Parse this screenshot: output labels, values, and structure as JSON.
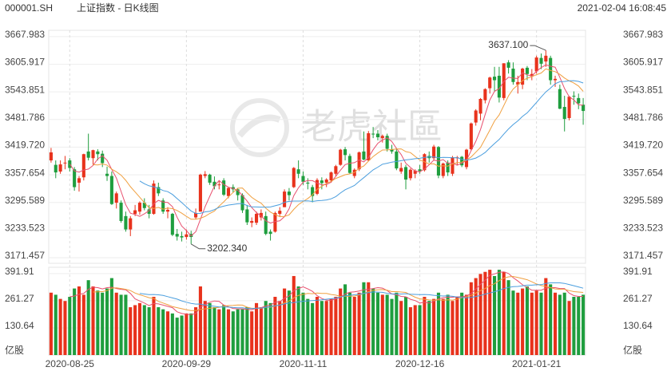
{
  "chart_data": {
    "type": "candlestick",
    "symbol": "000001.SH",
    "title": "上证指数 - 日K线图",
    "timestamp": "2021-02-04 16:08:45",
    "watermark": "老虎社區",
    "volume_unit": "亿股",
    "up_color": "#e8321c",
    "down_color": "#1f9e3e",
    "grid": true,
    "ylim": [
      3159,
      3682
    ],
    "yticks": [
      3667.983,
      3605.917,
      3543.851,
      3481.786,
      {
        "value": 3419.72,
        "label": "3419.720"
      },
      3357.654,
      3295.589,
      3233.523,
      3171.457
    ],
    "vol_ylim": [
      0,
      422
    ],
    "vol_yticks": [
      391.91,
      261.27,
      130.64
    ],
    "ma": [
      {
        "period": 5,
        "color": "#e8506e"
      },
      {
        "period": 10,
        "color": "#f0a040"
      },
      {
        "period": 20,
        "color": "#4a9ede"
      }
    ],
    "annotations": [
      {
        "value": 3637.1,
        "label": "3637.100"
      },
      {
        "value": 3202.34,
        "label": "3202.340"
      }
    ],
    "categories": [
      null,
      null,
      null,
      null,
      "2020-08-25",
      null,
      null,
      null,
      null,
      null,
      null,
      null,
      null,
      null,
      null,
      null,
      null,
      null,
      null,
      null,
      null,
      null,
      null,
      null,
      null,
      null,
      null,
      null,
      null,
      "2020-09-29",
      null,
      null,
      null,
      null,
      null,
      null,
      null,
      null,
      null,
      null,
      null,
      null,
      null,
      null,
      null,
      null,
      null,
      null,
      null,
      null,
      null,
      null,
      null,
      null,
      "2020-11-11",
      null,
      null,
      null,
      null,
      null,
      null,
      null,
      null,
      null,
      null,
      null,
      null,
      null,
      null,
      null,
      null,
      null,
      null,
      null,
      null,
      null,
      null,
      null,
      null,
      "2020-12-16",
      null,
      null,
      null,
      null,
      null,
      null,
      null,
      null,
      null,
      null,
      null,
      null,
      null,
      null,
      null,
      null,
      null,
      null,
      null,
      null,
      null,
      null,
      null,
      null,
      "2021-01-21",
      null,
      null,
      null,
      null,
      null,
      null,
      null,
      null,
      null,
      null
    ],
    "ohlc": [
      [
        3390,
        3418,
        3385,
        3408
      ],
      [
        3380,
        3390,
        3350,
        3363
      ],
      [
        3365,
        3390,
        3360,
        3381
      ],
      [
        3385,
        3400,
        3370,
        3385
      ],
      [
        3390,
        3395,
        3365,
        3373
      ],
      [
        3370,
        3375,
        3322,
        3330
      ],
      [
        3340,
        3355,
        3320,
        3350
      ],
      [
        3352,
        3405,
        3345,
        3404
      ],
      [
        3410,
        3450,
        3390,
        3396
      ],
      [
        3395,
        3414,
        3380,
        3413
      ],
      [
        3410,
        3415,
        3390,
        3404
      ],
      [
        3405,
        3412,
        3375,
        3384
      ],
      [
        3360,
        3376,
        3344,
        3355
      ],
      [
        3355,
        3365,
        3290,
        3292
      ],
      [
        3295,
        3320,
        3282,
        3316
      ],
      [
        3295,
        3300,
        3250,
        3254
      ],
      [
        3265,
        3275,
        3230,
        3235
      ],
      [
        3235,
        3265,
        3220,
        3260
      ],
      [
        3270,
        3290,
        3265,
        3278
      ],
      [
        3275,
        3298,
        3268,
        3295
      ],
      [
        3295,
        3305,
        3278,
        3283
      ],
      [
        3280,
        3290,
        3260,
        3270
      ],
      [
        3270,
        3345,
        3268,
        3338
      ],
      [
        3330,
        3340,
        3310,
        3316
      ],
      [
        3300,
        3305,
        3270,
        3275
      ],
      [
        3275,
        3285,
        3260,
        3279
      ],
      [
        3270,
        3272,
        3220,
        3223
      ],
      [
        3225,
        3236,
        3210,
        3219
      ],
      [
        3220,
        3230,
        3208,
        3217
      ],
      [
        3218,
        3235,
        3212,
        3224
      ],
      [
        3225,
        3232,
        3202.34,
        3218
      ],
      [
        3262,
        3282,
        3258,
        3272
      ],
      [
        3275,
        3360,
        3275,
        3358
      ],
      [
        3355,
        3366,
        3350,
        3359
      ],
      [
        3358,
        3360,
        3335,
        3340
      ],
      [
        3342,
        3354,
        3325,
        3332
      ],
      [
        3335,
        3345,
        3325,
        3336
      ],
      [
        3345,
        3350,
        3310,
        3313
      ],
      [
        3310,
        3330,
        3305,
        3328
      ],
      [
        3330,
        3336,
        3318,
        3325
      ],
      [
        3325,
        3328,
        3300,
        3312
      ],
      [
        3312,
        3316,
        3272,
        3278
      ],
      [
        3280,
        3290,
        3245,
        3251
      ],
      [
        3250,
        3262,
        3240,
        3254
      ],
      [
        3250,
        3275,
        3245,
        3270
      ],
      [
        3262,
        3280,
        3255,
        3272
      ],
      [
        3265,
        3275,
        3222,
        3225
      ],
      [
        3230,
        3235,
        3210,
        3225
      ],
      [
        3230,
        3275,
        3228,
        3272
      ],
      [
        3270,
        3285,
        3265,
        3277
      ],
      [
        3285,
        3325,
        3285,
        3320
      ],
      [
        3320,
        3328,
        3300,
        3312
      ],
      [
        3330,
        3375,
        3328,
        3373
      ],
      [
        3370,
        3390,
        3350,
        3360
      ],
      [
        3355,
        3365,
        3335,
        3342
      ],
      [
        3340,
        3350,
        3325,
        3338
      ],
      [
        3330,
        3335,
        3296,
        3310
      ],
      [
        3315,
        3350,
        3312,
        3346
      ],
      [
        3345,
        3352,
        3325,
        3339
      ],
      [
        3340,
        3350,
        3330,
        3347
      ],
      [
        3345,
        3365,
        3340,
        3363
      ],
      [
        3360,
        3380,
        3355,
        3377
      ],
      [
        3380,
        3416,
        3378,
        3414
      ],
      [
        3415,
        3420,
        3390,
        3402
      ],
      [
        3400,
        3405,
        3360,
        3362
      ],
      [
        3355,
        3372,
        3350,
        3369
      ],
      [
        3370,
        3410,
        3366,
        3408
      ],
      [
        3410,
        3455,
        3390,
        3392
      ],
      [
        3390,
        3456,
        3388,
        3451
      ],
      [
        3450,
        3465,
        3440,
        3449
      ],
      [
        3450,
        3458,
        3435,
        3442
      ],
      [
        3440,
        3448,
        3430,
        3445
      ],
      [
        3445,
        3450,
        3410,
        3416
      ],
      [
        3415,
        3425,
        3405,
        3410
      ],
      [
        3410,
        3418,
        3368,
        3372
      ],
      [
        3365,
        3385,
        3360,
        3373
      ],
      [
        3375,
        3380,
        3325,
        3347
      ],
      [
        3350,
        3372,
        3345,
        3369
      ],
      [
        3360,
        3370,
        3350,
        3367
      ],
      [
        3370,
        3380,
        3360,
        3366
      ],
      [
        3368,
        3406,
        3365,
        3404
      ],
      [
        3400,
        3410,
        3385,
        3395
      ],
      [
        3395,
        3425,
        3390,
        3421
      ],
      [
        3420,
        3422,
        3350,
        3356
      ],
      [
        3355,
        3385,
        3350,
        3383
      ],
      [
        3385,
        3390,
        3355,
        3363
      ],
      [
        3360,
        3400,
        3355,
        3397
      ],
      [
        3395,
        3400,
        3380,
        3397
      ],
      [
        3398,
        3400,
        3375,
        3379
      ],
      [
        3375,
        3416,
        3370,
        3414
      ],
      [
        3415,
        3475,
        3412,
        3473
      ],
      [
        3475,
        3505,
        3468,
        3502
      ],
      [
        3495,
        3530,
        3480,
        3528
      ],
      [
        3525,
        3552,
        3518,
        3550
      ],
      [
        3552,
        3578,
        3540,
        3576
      ],
      [
        3578,
        3600,
        3545,
        3570
      ],
      [
        3580,
        3600,
        3520,
        3531
      ],
      [
        3530,
        3608,
        3525,
        3608
      ],
      [
        3610,
        3615,
        3585,
        3598
      ],
      [
        3596,
        3610,
        3560,
        3566
      ],
      [
        3560,
        3580,
        3540,
        3566
      ],
      [
        3560,
        3598,
        3550,
        3596
      ],
      [
        3598,
        3602,
        3570,
        3584
      ],
      [
        3580,
        3595,
        3570,
        3584
      ],
      [
        3590,
        3625,
        3585,
        3621
      ],
      [
        3620,
        3630,
        3595,
        3607
      ],
      [
        3612,
        3637.1,
        3600,
        3625
      ],
      [
        3620,
        3625,
        3560,
        3570
      ],
      [
        3570,
        3580,
        3555,
        3573
      ],
      [
        3550,
        3560,
        3505,
        3506
      ],
      [
        3510,
        3535,
        3455,
        3483
      ],
      [
        3485,
        3535,
        3480,
        3533
      ],
      [
        3535,
        3545,
        3515,
        3534
      ],
      [
        3530,
        3540,
        3505,
        3518
      ],
      [
        3515,
        3530,
        3470,
        3501
      ]
    ],
    "volume": [
      300,
      290,
      270,
      260,
      280,
      320,
      330,
      290,
      360,
      330,
      310,
      300,
      320,
      370,
      300,
      290,
      290,
      230,
      240,
      250,
      240,
      230,
      280,
      230,
      220,
      210,
      200,
      180,
      190,
      200,
      200,
      230,
      330,
      260,
      250,
      230,
      220,
      240,
      220,
      210,
      220,
      220,
      230,
      210,
      250,
      230,
      260,
      250,
      280,
      260,
      320,
      310,
      380,
      330,
      300,
      270,
      250,
      280,
      260,
      260,
      270,
      280,
      320,
      340,
      300,
      280,
      300,
      350,
      350,
      320,
      300,
      290,
      290,
      270,
      300,
      260,
      280,
      230,
      240,
      240,
      280,
      260,
      270,
      300,
      270,
      290,
      260,
      280,
      300,
      290,
      350,
      370,
      390,
      400,
      410,
      380,
      410,
      400,
      360,
      310,
      300,
      320,
      330,
      300,
      310,
      300,
      370,
      340,
      300,
      290,
      300,
      260,
      280,
      280,
      290
    ]
  }
}
